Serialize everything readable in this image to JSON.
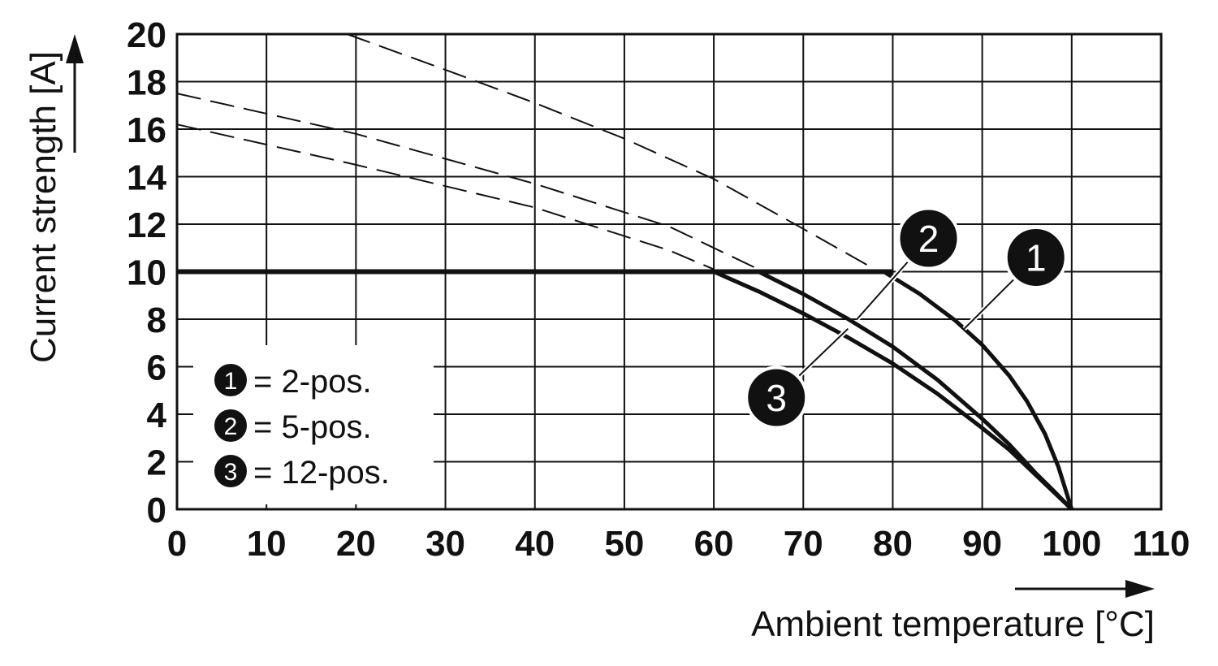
{
  "chart_data": {
    "type": "line",
    "xlabel": "Ambient temperature [°C]",
    "ylabel": "Current strength [A]",
    "xlim": [
      0,
      110
    ],
    "ylim": [
      0,
      20
    ],
    "x_ticks": [
      "0",
      "10",
      "20",
      "30",
      "40",
      "50",
      "60",
      "70",
      "80",
      "90",
      "100",
      "110"
    ],
    "y_ticks": [
      "0",
      "2",
      "4",
      "6",
      "8",
      "10",
      "12",
      "14",
      "16",
      "18",
      "20"
    ],
    "grid": true,
    "legend_position": "bottom-left",
    "legend": [
      {
        "badge": "1",
        "label": "= 2-pos."
      },
      {
        "badge": "2",
        "label": "= 5-pos."
      },
      {
        "badge": "3",
        "label": "= 12-pos."
      }
    ],
    "limit_line": {
      "y": 10,
      "x": [
        0,
        80
      ]
    },
    "series": [
      {
        "badge": "1",
        "style": "solid",
        "points": [
          [
            79,
            10
          ],
          [
            83,
            9.07
          ],
          [
            87,
            7.94
          ],
          [
            90,
            6.92
          ],
          [
            93,
            5.63
          ],
          [
            95,
            4.55
          ],
          [
            97,
            3.18
          ],
          [
            98.5,
            1.8
          ],
          [
            100,
            0
          ]
        ]
      },
      {
        "badge": "2",
        "style": "solid",
        "points": [
          [
            65,
            10
          ],
          [
            70,
            9.06
          ],
          [
            75,
            8.01
          ],
          [
            80,
            6.84
          ],
          [
            85,
            5.45
          ],
          [
            90,
            3.81
          ],
          [
            93,
            2.74
          ],
          [
            96,
            1.51
          ],
          [
            98,
            0.77
          ],
          [
            100,
            0
          ]
        ]
      },
      {
        "badge": "3",
        "style": "solid",
        "points": [
          [
            60,
            10
          ],
          [
            65,
            9.17
          ],
          [
            70,
            8.24
          ],
          [
            75,
            7.23
          ],
          [
            80,
            6.13
          ],
          [
            85,
            4.86
          ],
          [
            90,
            3.42
          ],
          [
            93,
            2.51
          ],
          [
            96,
            1.44
          ],
          [
            98,
            0.72
          ],
          [
            100,
            0
          ]
        ]
      },
      {
        "badge": "1",
        "style": "dashed",
        "points": [
          [
            19,
            20
          ],
          [
            30,
            18.5
          ],
          [
            40,
            17.1
          ],
          [
            50,
            15.6
          ],
          [
            60,
            13.9
          ],
          [
            70,
            11.8
          ],
          [
            78,
            10.1
          ]
        ]
      },
      {
        "badge": "2",
        "style": "dashed",
        "points": [
          [
            0,
            17.5
          ],
          [
            20,
            15.8
          ],
          [
            40,
            13.7
          ],
          [
            55,
            11.9
          ],
          [
            65,
            10.1
          ]
        ]
      },
      {
        "badge": "3",
        "style": "dashed",
        "points": [
          [
            0,
            16.2
          ],
          [
            20,
            14.5
          ],
          [
            40,
            12.7
          ],
          [
            55,
            10.9
          ],
          [
            60,
            10.1
          ]
        ]
      }
    ],
    "callouts": [
      {
        "badge": "1",
        "point": [
          88,
          7.6
        ],
        "label_at": [
          96,
          10.6
        ]
      },
      {
        "badge": "2",
        "point": [
          76,
          8.0
        ],
        "label_at": [
          84,
          11.4
        ]
      },
      {
        "badge": "3",
        "point": [
          75,
          7.6
        ],
        "label_at": [
          67,
          4.7
        ]
      }
    ]
  }
}
